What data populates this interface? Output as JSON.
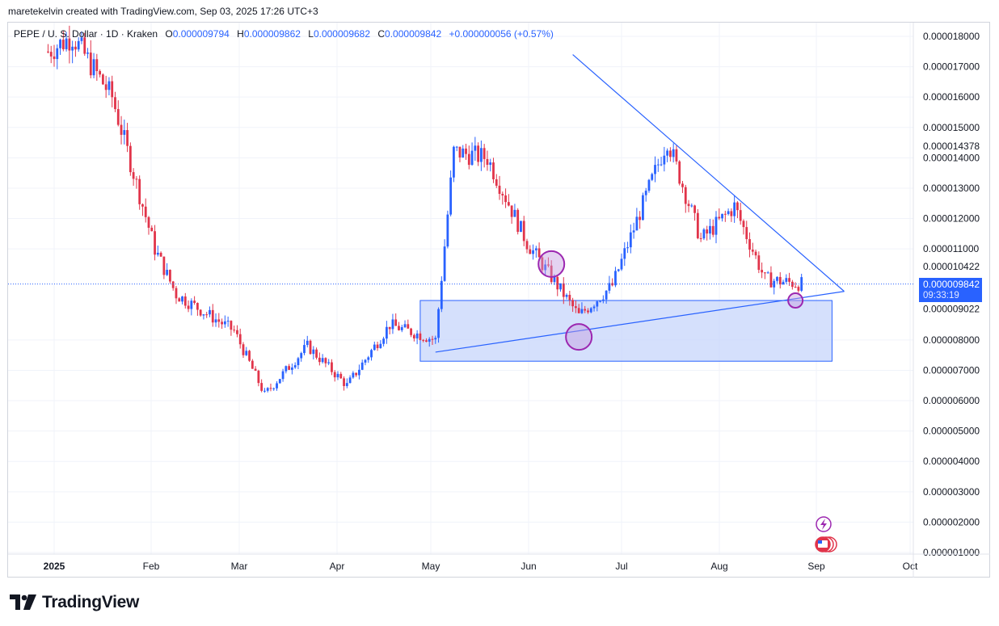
{
  "header": {
    "created_by": "maretekelvin created with TradingView.com, Sep 03, 2025 17:26 UTC+3"
  },
  "legend": {
    "symbol": "PEPE / U. S. Dollar · 1D · Kraken",
    "open_label": "O",
    "open": "0.000009794",
    "high_label": "H",
    "high": "0.000009862",
    "low_label": "L",
    "low": "0.000009682",
    "close_label": "C",
    "close": "0.000009842",
    "change": "+0.000000056 (+0.57%)"
  },
  "badge": {
    "price": "0.000009842",
    "countdown": "09:33:19"
  },
  "brand": {
    "name": "TradingView"
  },
  "colors": {
    "up": "#2962ff",
    "down": "#e1344a",
    "accent": "#2962ff",
    "zone": "#c7d6fb",
    "circle": "#9c27b0"
  },
  "chart_data": {
    "type": "candlestick",
    "title": "PEPE / U. S. Dollar · 1D · Kraken",
    "y_axis_ticks": [
      "0.000018000",
      "0.000017000",
      "0.000016000",
      "0.000015000",
      "0.000014378",
      "0.000014000",
      "0.000013000",
      "0.000012000",
      "0.000011000",
      "0.000010422",
      "0.000009022",
      "0.000008000",
      "0.000007000",
      "0.000006000",
      "0.000005000",
      "0.000004000",
      "0.000003000",
      "0.000002000",
      "0.000001000"
    ],
    "x_axis_ticks": [
      "2025",
      "Feb",
      "Mar",
      "Apr",
      "May",
      "Jun",
      "Jul",
      "Aug",
      "Sep",
      "Oct"
    ],
    "ylim": [
      1e-06,
      1.83e-05
    ],
    "last_price": 9.842e-06,
    "approx_close_path": [
      {
        "date": "2024-12-30",
        "close": 1.75e-05
      },
      {
        "date": "2025-01-07",
        "close": 1.8e-05
      },
      {
        "date": "2025-01-20",
        "close": 1.6e-05
      },
      {
        "date": "2025-02-03",
        "close": 1.1e-05
      },
      {
        "date": "2025-02-10",
        "close": 9.5e-06
      },
      {
        "date": "2025-03-01",
        "close": 8.3e-06
      },
      {
        "date": "2025-03-11",
        "close": 6.2e-06
      },
      {
        "date": "2025-03-25",
        "close": 7.8e-06
      },
      {
        "date": "2025-04-07",
        "close": 6.5e-06
      },
      {
        "date": "2025-04-21",
        "close": 8.5e-06
      },
      {
        "date": "2025-05-06",
        "close": 8e-06
      },
      {
        "date": "2025-05-12",
        "close": 1.42e-05
      },
      {
        "date": "2025-05-23",
        "close": 1.4e-05
      },
      {
        "date": "2025-06-05",
        "close": 1.12e-05
      },
      {
        "date": "2025-06-22",
        "close": 8.8e-06
      },
      {
        "date": "2025-07-03",
        "close": 9.8e-06
      },
      {
        "date": "2025-07-21",
        "close": 1.46e-05
      },
      {
        "date": "2025-08-01",
        "close": 1.13e-05
      },
      {
        "date": "2025-08-12",
        "close": 1.24e-05
      },
      {
        "date": "2025-08-22",
        "close": 1e-05
      },
      {
        "date": "2025-09-03",
        "close": 9.842e-06
      }
    ],
    "annotations": [
      {
        "type": "descending-trendline",
        "from": {
          "date": "2025-06-20",
          "price": 1.74e-05
        },
        "to": {
          "date": "2025-09-17",
          "price": 9.6e-06
        }
      },
      {
        "type": "ascending-trendline",
        "from": {
          "date": "2025-05-06",
          "price": 7.6e-06
        },
        "to": {
          "date": "2025-09-17",
          "price": 9.6e-06
        }
      },
      {
        "type": "support-zone",
        "price_top": 9.3e-06,
        "price_bottom": 7.3e-06,
        "from": "2025-05-01",
        "to": "2025-09-13"
      },
      {
        "type": "circle",
        "date": "2025-06-13",
        "price": 1.05e-05
      },
      {
        "type": "circle",
        "date": "2025-06-22",
        "price": 8.1e-06
      },
      {
        "type": "circle",
        "date": "2025-09-01",
        "price": 9.3e-06
      }
    ]
  }
}
